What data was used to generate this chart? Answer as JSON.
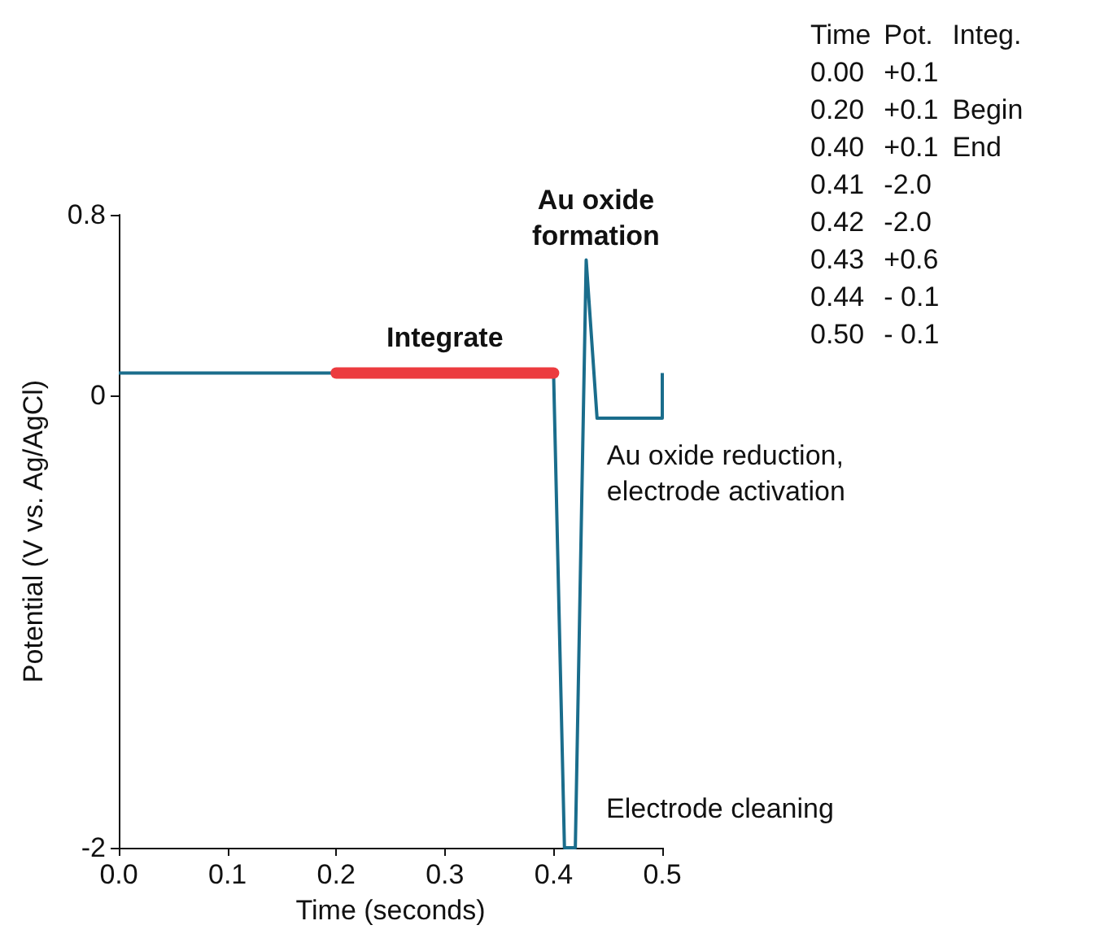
{
  "chart_data": {
    "type": "line",
    "xlabel": "Time (seconds)",
    "ylabel": "Potential (V vs. Ag/AgCl)",
    "xlim": [
      0,
      0.5
    ],
    "xticks": [
      {
        "value": 0,
        "label": "0.0"
      },
      0.1,
      0.2,
      0.3,
      0.4,
      0.5
    ],
    "ylim": [
      -2,
      0.8
    ],
    "yticks": [
      -2,
      0,
      0.8
    ],
    "grid": false,
    "marker": "none",
    "line_style": "solid",
    "series": [
      {
        "color": "#1a6d8c",
        "x": [
          0,
          0.4,
          0.41,
          0.42,
          0.43,
          0.44,
          0.5,
          0.5
        ],
        "values": [
          0.1,
          0.1,
          -2,
          -2,
          0.6,
          -0.1,
          -0.1,
          0.1
        ]
      },
      {
        "color": "#ec3b3f",
        "x": [
          0.2,
          0.4
        ],
        "values": [
          0.1,
          0.1
        ]
      }
    ],
    "annotations": [
      {
        "text": "Integrate",
        "x": 0.3,
        "y": 0.1
      },
      {
        "text": "Au oxide\nformation",
        "x": 0.43,
        "y": 0.6
      },
      {
        "text": "Au oxide reduction,\nelectrode activation",
        "x": 0.44,
        "y": -0.1
      },
      {
        "text": "Electrode cleaning",
        "x": 0.42,
        "y": -2
      },
      "Time  Pot.  Integ.",
      "0.00  +0.1",
      "0.20  +0.1  Begin",
      "0.40  +0.1  End",
      "0.41  -2.0",
      "0.42  -2.0",
      "0.43  +0.6",
      "0.44  - 0.1",
      "0.50  - 0.1"
    ]
  }
}
